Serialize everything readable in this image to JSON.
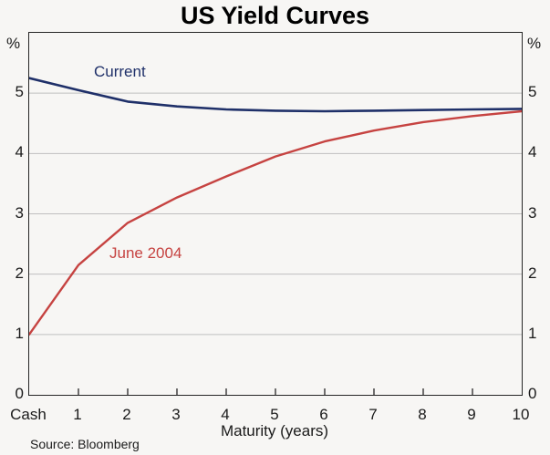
{
  "title": "US Yield Curves",
  "axes": {
    "unit_left": "%",
    "unit_right": "%",
    "xlabel": "Maturity (years)"
  },
  "footer": {
    "source": "Source: Bloomberg"
  },
  "colors": {
    "current_line": "#1f3069",
    "june_line": "#c64341",
    "gridline": "#bfbfbf",
    "axis_border": "#262626",
    "background": "#f7f6f4"
  },
  "chart_data": {
    "type": "line",
    "title": "US Yield Curves",
    "xlabel": "Maturity (years)",
    "ylabel": "%",
    "x_categories": [
      "Cash",
      "1",
      "2",
      "3",
      "4",
      "5",
      "6",
      "7",
      "8",
      "9",
      "10"
    ],
    "x_values": [
      0,
      1,
      2,
      3,
      4,
      5,
      6,
      7,
      8,
      9,
      10
    ],
    "series": [
      {
        "name": "Current",
        "color": "#1f3069",
        "stroke_width": 2.6,
        "values": [
          5.25,
          5.05,
          4.86,
          4.78,
          4.73,
          4.71,
          4.7,
          4.71,
          4.72,
          4.73,
          4.74
        ]
      },
      {
        "name": "June 2004",
        "color": "#c64341",
        "stroke_width": 2.4,
        "values": [
          1.0,
          2.15,
          2.85,
          3.27,
          3.62,
          3.95,
          4.2,
          4.38,
          4.52,
          4.62,
          4.7
        ]
      }
    ],
    "ylim": [
      0,
      6
    ],
    "xlim": [
      0,
      10
    ],
    "y_gridlines": [
      1,
      2,
      3,
      4,
      5
    ],
    "y_tick_labels": [
      "0",
      "1",
      "2",
      "3",
      "4",
      "5"
    ],
    "x_minor_ticks": [
      1,
      2,
      3,
      4,
      5,
      6,
      7,
      8,
      9
    ],
    "grid": "horizontal-on",
    "legend_position": "inline-labels",
    "source": "Source: Bloomberg"
  }
}
